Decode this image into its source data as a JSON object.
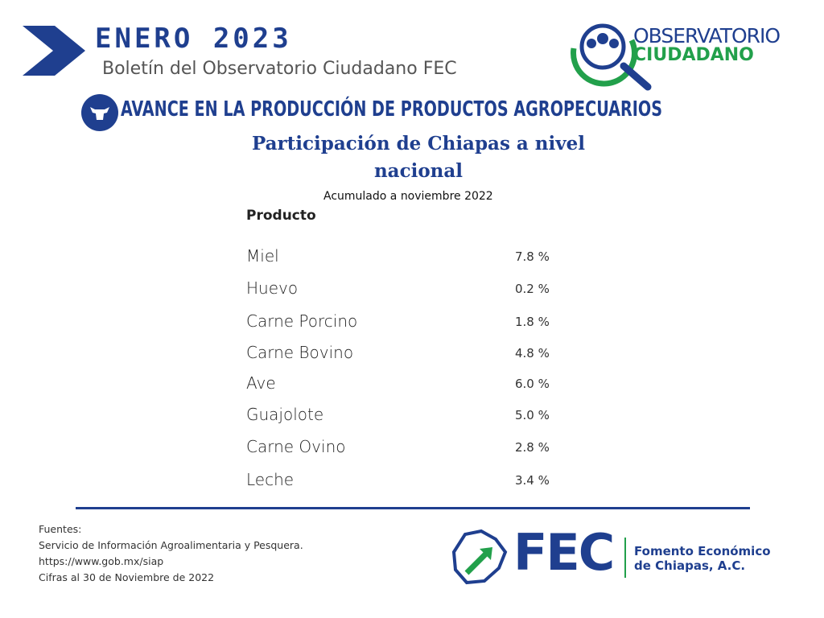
{
  "header": {
    "month_year": "ENERO  2023",
    "subtitle": "Boletín del Observatorio Ciudadano FEC"
  },
  "logo": {
    "line1": "OBSERVATORIO",
    "line2": "CIUDADANO"
  },
  "section": {
    "title": "AVANCE EN LA PRODUCCIÓN DE PRODUCTOS AGROPECUARIOS",
    "subtitle": "Participación de Chiapas a nivel nacional",
    "note": "Acumulado a noviembre  2022"
  },
  "table": {
    "header": "Producto",
    "rows": [
      [
        "Miel",
        "7.8 %"
      ],
      [
        "Huevo",
        "0.2 %"
      ],
      [
        "Carne Porcino",
        "1.8 %"
      ],
      [
        "Carne Bovino",
        "4.8 %"
      ],
      [
        "Ave",
        "6.0 %"
      ],
      [
        "Guajolote",
        "5.0 %"
      ],
      [
        "Carne Ovino",
        "2.8 %"
      ],
      [
        "Leche",
        "3.4 %"
      ]
    ]
  },
  "footer": {
    "lines": [
      "Fuentes:",
      "Servicio de Información Agroalimentaria y Pesquera.",
      "https://www.gob.mx/siap",
      "Cifras al 30 de Noviembre de 2022"
    ]
  },
  "fec": {
    "abbr": "FEC",
    "name_line1": "Fomento Económico",
    "name_line2": "de Chiapas, A.C."
  }
}
